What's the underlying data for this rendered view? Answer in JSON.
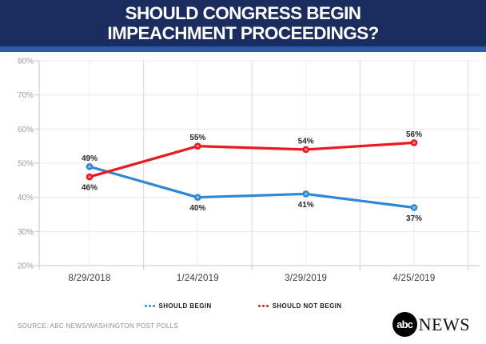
{
  "header": {
    "title_line1": "SHOULD CONGRESS BEGIN",
    "title_line2": "IMPEACHMENT PROCEEDINGS?",
    "bg_color": "#1b2d5e",
    "accent_strip_color": "#2c5caa"
  },
  "chart_data": {
    "type": "line",
    "title": "SHOULD CONGRESS BEGIN IMPEACHMENT PROCEEDINGS?",
    "categories": [
      "8/29/2018",
      "1/24/2019",
      "3/29/2019",
      "4/25/2019"
    ],
    "series": [
      {
        "name": "SHOULD BEGIN",
        "color": "#2e86d6",
        "values": [
          49,
          40,
          41,
          37
        ],
        "labels": [
          "49%",
          "40%",
          "41%",
          "37%"
        ],
        "label_position": [
          "above",
          "below",
          "below",
          "below"
        ]
      },
      {
        "name": "SHOULD NOT BEGIN",
        "color": "#e8191f",
        "values": [
          46,
          55,
          54,
          56
        ],
        "labels": [
          "46%",
          "55%",
          "54%",
          "56%"
        ],
        "label_position": [
          "below",
          "above",
          "above",
          "above"
        ]
      }
    ],
    "y_ticks": [
      "80%",
      "70%",
      "60%",
      "50%",
      "40%",
      "30%",
      "20%"
    ],
    "ylim": [
      20,
      80
    ],
    "grid": true,
    "legend_position": "bottom"
  },
  "footer": {
    "source": "SOURCE: ABC NEWS/WASHINGTON POST POLLS",
    "logo_abc": "abc",
    "logo_news": "NEWS"
  }
}
